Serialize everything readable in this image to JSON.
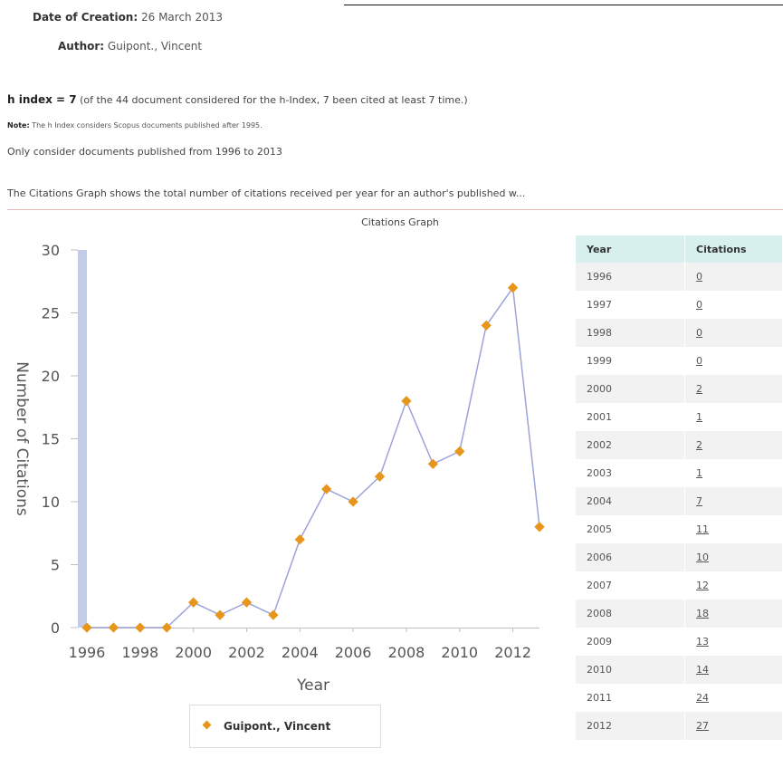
{
  "meta": {
    "date_label": "Date of Creation:",
    "date_value": "26 March 2013",
    "author_label": "Author:",
    "author_value": "Guipont., Vincent"
  },
  "hindex": {
    "label": "h index = 7",
    "text": " (of the 44 document considered for the h-Index, 7  been cited at least 7 time.)"
  },
  "note": {
    "label": "Note:",
    "text": " The h Index considers Scopus documents published after 1995."
  },
  "range_text": "Only consider documents published from 1996 to 2013",
  "description": "The Citations Graph shows the total number of citations received per year for an author's published w...",
  "chart_data": {
    "type": "line",
    "title": "Citations Graph",
    "xlabel": "Year",
    "ylabel": "Number of Citations",
    "xlim": [
      1996,
      2013
    ],
    "ylim": [
      0,
      30
    ],
    "x_ticks": [
      1996,
      1998,
      2000,
      2002,
      2004,
      2006,
      2008,
      2010,
      2012
    ],
    "y_ticks": [
      0,
      5,
      10,
      15,
      20,
      25,
      30
    ],
    "series": [
      {
        "name": "Guipont., Vincent",
        "x": [
          1996,
          1997,
          1998,
          1999,
          2000,
          2001,
          2002,
          2003,
          2004,
          2005,
          2006,
          2007,
          2008,
          2009,
          2010,
          2011,
          2012,
          2013
        ],
        "values": [
          0,
          0,
          0,
          0,
          2,
          1,
          2,
          1,
          7,
          11,
          10,
          12,
          18,
          13,
          14,
          24,
          27,
          8
        ]
      }
    ],
    "legend": "bottom-center",
    "grid": false,
    "line_color": "#9da3d9",
    "marker_color": "#e8951b",
    "axis_bar_color": "#c4cbe6"
  },
  "table": {
    "headers": [
      "Year",
      "Citations"
    ],
    "rows": [
      [
        "1996",
        "0"
      ],
      [
        "1997",
        "0"
      ],
      [
        "1998",
        "0"
      ],
      [
        "1999",
        "0"
      ],
      [
        "2000",
        "2"
      ],
      [
        "2001",
        "1"
      ],
      [
        "2002",
        "2"
      ],
      [
        "2003",
        "1"
      ],
      [
        "2004",
        "7"
      ],
      [
        "2005",
        "11"
      ],
      [
        "2006",
        "10"
      ],
      [
        "2007",
        "12"
      ],
      [
        "2008",
        "18"
      ],
      [
        "2009",
        "13"
      ],
      [
        "2010",
        "14"
      ],
      [
        "2011",
        "24"
      ],
      [
        "2012",
        "27"
      ]
    ]
  }
}
